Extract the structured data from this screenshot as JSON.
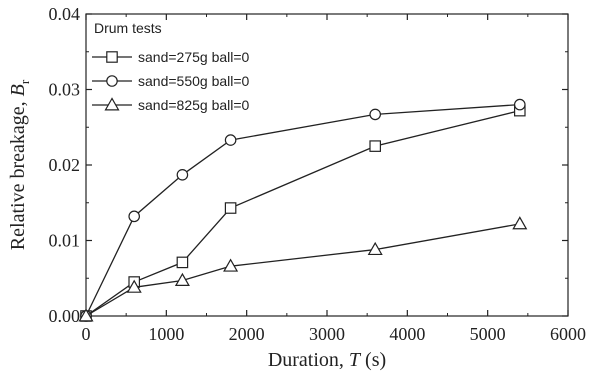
{
  "chart_data": {
    "type": "line",
    "xlabel": {
      "prefix": "Duration, ",
      "symbol": "T",
      "suffix": " (s)"
    },
    "ylabel": {
      "prefix": "Relative breakage, ",
      "symbol": "B",
      "subscript": "r"
    },
    "xlim": [
      0,
      6000
    ],
    "ylim": [
      0,
      0.04
    ],
    "xticks": [
      0,
      1000,
      2000,
      3000,
      4000,
      5000,
      6000
    ],
    "yticks": [
      0.0,
      0.01,
      0.02,
      0.03,
      0.04
    ],
    "xtick_labels": [
      "0",
      "1000",
      "2000",
      "3000",
      "4000",
      "5000",
      "6000"
    ],
    "ytick_labels": [
      "0.00",
      "0.01",
      "0.02",
      "0.03",
      "0.04"
    ],
    "grid": false,
    "legend": {
      "title": "Drum tests",
      "placement": "top-left"
    },
    "series": [
      {
        "name": "sand=275g ball=0",
        "marker": "square",
        "x": [
          0,
          600,
          1200,
          1800,
          3600,
          5400
        ],
        "y": [
          0.0,
          0.0045,
          0.0071,
          0.0143,
          0.0225,
          0.0272
        ]
      },
      {
        "name": "sand=550g ball=0",
        "marker": "circle",
        "x": [
          0,
          600,
          1200,
          1800,
          3600,
          5400
        ],
        "y": [
          0.0,
          0.0132,
          0.0187,
          0.0233,
          0.0267,
          0.028
        ]
      },
      {
        "name": "sand=825g ball=0",
        "marker": "triangle",
        "x": [
          0,
          600,
          1200,
          1800,
          3600,
          5400
        ],
        "y": [
          0.0,
          0.0038,
          0.0047,
          0.0066,
          0.0088,
          0.0122
        ]
      }
    ]
  }
}
